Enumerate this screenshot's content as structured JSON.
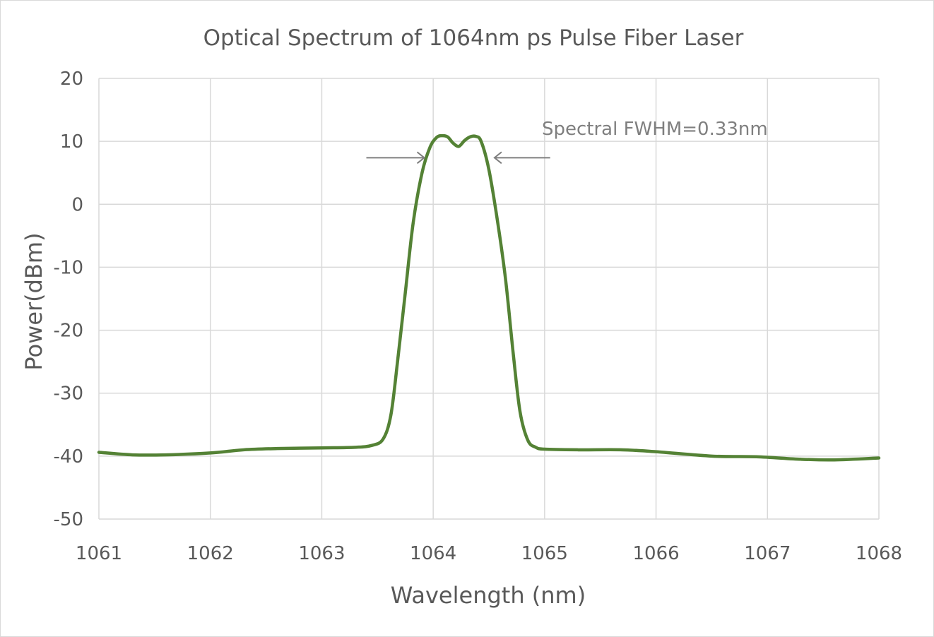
{
  "chart_data": {
    "type": "line",
    "title": "Optical Spectrum of 1064nm ps Pulse Fiber Laser",
    "xlabel": "Wavelength (nm)",
    "ylabel": "Power(dBm)",
    "xlim": [
      1061,
      1068
    ],
    "ylim": [
      -50,
      20
    ],
    "x_ticks": [
      1061,
      1062,
      1063,
      1064,
      1065,
      1066,
      1067,
      1068
    ],
    "y_ticks": [
      20,
      10,
      0,
      -10,
      -20,
      -30,
      -40,
      -50
    ],
    "grid": true,
    "legend": "none",
    "series_color": "#548235",
    "annotation": {
      "text": "Spectral FWHM=0.33nm",
      "arrow_left": {
        "from_x": 1063.4,
        "to_x": 1063.92,
        "y": 7.4
      },
      "arrow_right": {
        "from_x": 1065.05,
        "to_x": 1064.55,
        "y": 7.4
      }
    },
    "series": [
      {
        "x": [
          1061.0,
          1061.3,
          1061.6,
          1062.0,
          1062.3,
          1062.6,
          1063.0,
          1063.3,
          1063.45,
          1063.55,
          1063.62,
          1063.68,
          1063.75,
          1063.82,
          1063.9,
          1063.97,
          1064.03,
          1064.08,
          1064.13,
          1064.18,
          1064.23,
          1064.28,
          1064.33,
          1064.38,
          1064.43,
          1064.5,
          1064.58,
          1064.65,
          1064.72,
          1064.78,
          1064.85,
          1064.92,
          1065.0,
          1065.3,
          1065.7,
          1066.0,
          1066.5,
          1066.9,
          1067.3,
          1067.6,
          1068.0
        ],
        "y": [
          -39.4,
          -39.8,
          -39.8,
          -39.5,
          -39.0,
          -38.8,
          -38.7,
          -38.6,
          -38.3,
          -37.3,
          -33.5,
          -25.0,
          -14.0,
          -3.0,
          5.0,
          9.0,
          10.6,
          10.9,
          10.7,
          9.7,
          9.2,
          10.1,
          10.7,
          10.8,
          10.0,
          5.5,
          -3.0,
          -12.0,
          -24.0,
          -33.0,
          -37.5,
          -38.6,
          -38.9,
          -39.0,
          -39.0,
          -39.3,
          -40.0,
          -40.1,
          -40.5,
          -40.6,
          -40.3
        ]
      }
    ]
  }
}
